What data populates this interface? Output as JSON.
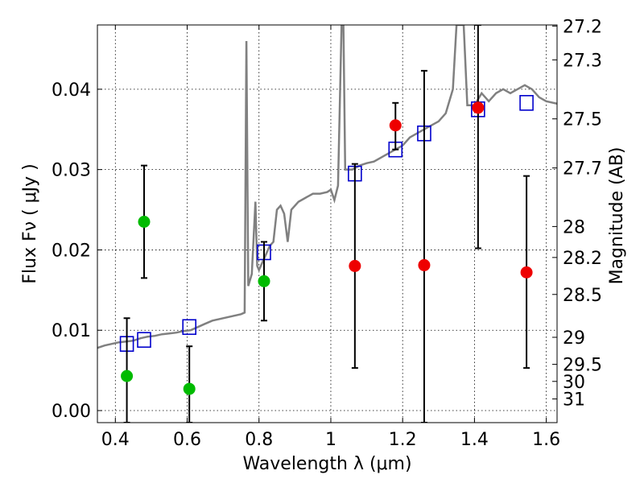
{
  "chart_data": {
    "type": "scatter",
    "xlabel": "Wavelength  λ (μm)",
    "ylabel": "Flux  Fν  ( μJy )",
    "ylabel_right": "Magnitude (AB)",
    "xlim": [
      0.35,
      1.63
    ],
    "ylim": [
      -0.0015,
      0.048
    ],
    "grid": true,
    "x_ticks": [
      {
        "value": 0.4,
        "label": "0.4"
      },
      {
        "value": 0.6,
        "label": "0.6"
      },
      {
        "value": 0.8,
        "label": "0.8"
      },
      {
        "value": 1.0,
        "label": "1"
      },
      {
        "value": 1.2,
        "label": "1.2"
      },
      {
        "value": 1.4,
        "label": "1.4"
      },
      {
        "value": 1.6,
        "label": "1.6"
      }
    ],
    "y_ticks": [
      {
        "value": 0.0,
        "label": "0.00"
      },
      {
        "value": 0.01,
        "label": "0.01"
      },
      {
        "value": 0.02,
        "label": "0.02"
      },
      {
        "value": 0.03,
        "label": "0.03"
      },
      {
        "value": 0.04,
        "label": "0.04"
      }
    ],
    "mag_ticks": [
      {
        "value": 27.2,
        "label": "27.2"
      },
      {
        "value": 27.3,
        "label": "27.3"
      },
      {
        "value": 27.5,
        "label": "27.5"
      },
      {
        "value": 27.7,
        "label": "27.7"
      },
      {
        "value": 28,
        "label": "28"
      },
      {
        "value": 28.2,
        "label": "28.2"
      },
      {
        "value": 28.5,
        "label": "28.5"
      },
      {
        "value": 29,
        "label": "29"
      },
      {
        "value": 29.5,
        "label": "29.5"
      },
      {
        "value": 30,
        "label": "30"
      },
      {
        "value": 31,
        "label": "31"
      }
    ],
    "colors": {
      "spectrum": "#808080",
      "model": "#0000cc",
      "green": "#00bb00",
      "red": "#ee0000",
      "errorbar": "#000000",
      "grid": "#000000"
    },
    "series": [
      {
        "kind": "line",
        "points": [
          [
            0.35,
            0.0078
          ],
          [
            0.37,
            0.0081
          ],
          [
            0.39,
            0.0083
          ],
          [
            0.41,
            0.0085
          ],
          [
            0.43,
            0.0086
          ],
          [
            0.45,
            0.0087
          ],
          [
            0.47,
            0.009
          ],
          [
            0.49,
            0.0092
          ],
          [
            0.51,
            0.0093
          ],
          [
            0.53,
            0.0095
          ],
          [
            0.55,
            0.0096
          ],
          [
            0.57,
            0.0097
          ],
          [
            0.59,
            0.0099
          ],
          [
            0.61,
            0.01
          ],
          [
            0.63,
            0.0104
          ],
          [
            0.65,
            0.0108
          ],
          [
            0.67,
            0.0112
          ],
          [
            0.69,
            0.0114
          ],
          [
            0.71,
            0.0116
          ],
          [
            0.73,
            0.0118
          ],
          [
            0.75,
            0.012
          ],
          [
            0.76,
            0.0122
          ],
          [
            0.765,
            0.046
          ],
          [
            0.77,
            0.0155
          ],
          [
            0.78,
            0.017
          ],
          [
            0.79,
            0.026
          ],
          [
            0.795,
            0.018
          ],
          [
            0.8,
            0.0175
          ],
          [
            0.82,
            0.0195
          ],
          [
            0.83,
            0.0205
          ],
          [
            0.84,
            0.021
          ],
          [
            0.85,
            0.025
          ],
          [
            0.86,
            0.0255
          ],
          [
            0.87,
            0.0245
          ],
          [
            0.88,
            0.021
          ],
          [
            0.89,
            0.025
          ],
          [
            0.91,
            0.026
          ],
          [
            0.93,
            0.0265
          ],
          [
            0.95,
            0.027
          ],
          [
            0.97,
            0.027
          ],
          [
            0.99,
            0.0272
          ],
          [
            1.0,
            0.0275
          ],
          [
            1.01,
            0.0262
          ],
          [
            1.02,
            0.028
          ],
          [
            1.03,
            0.048
          ],
          [
            1.035,
            0.048
          ],
          [
            1.04,
            0.03
          ],
          [
            1.06,
            0.03
          ],
          [
            1.08,
            0.0305
          ],
          [
            1.1,
            0.0308
          ],
          [
            1.12,
            0.031
          ],
          [
            1.14,
            0.0315
          ],
          [
            1.16,
            0.032
          ],
          [
            1.18,
            0.0325
          ],
          [
            1.2,
            0.033
          ],
          [
            1.22,
            0.034
          ],
          [
            1.24,
            0.0345
          ],
          [
            1.26,
            0.035
          ],
          [
            1.28,
            0.0355
          ],
          [
            1.3,
            0.036
          ],
          [
            1.32,
            0.037
          ],
          [
            1.34,
            0.04
          ],
          [
            1.35,
            0.048
          ],
          [
            1.37,
            0.048
          ],
          [
            1.38,
            0.038
          ],
          [
            1.4,
            0.038
          ],
          [
            1.42,
            0.0395
          ],
          [
            1.44,
            0.0385
          ],
          [
            1.46,
            0.0395
          ],
          [
            1.48,
            0.04
          ],
          [
            1.5,
            0.0395
          ],
          [
            1.52,
            0.04
          ],
          [
            1.54,
            0.0405
          ],
          [
            1.56,
            0.04
          ],
          [
            1.58,
            0.039
          ],
          [
            1.6,
            0.0385
          ],
          [
            1.63,
            0.0382
          ]
        ]
      },
      {
        "kind": "squares",
        "points": [
          [
            0.432,
            0.0083
          ],
          [
            0.48,
            0.0088
          ],
          [
            0.606,
            0.0104
          ],
          [
            0.814,
            0.0197
          ],
          [
            1.067,
            0.0295
          ],
          [
            1.18,
            0.0325
          ],
          [
            1.26,
            0.0345
          ],
          [
            1.41,
            0.0375
          ],
          [
            1.545,
            0.0383
          ]
        ]
      },
      {
        "kind": "green-circles",
        "points": [
          {
            "x": 0.432,
            "y": 0.0043,
            "err_low": -0.0015,
            "err_high": 0.0115
          },
          {
            "x": 0.48,
            "y": 0.0235,
            "err_low": 0.0165,
            "err_high": 0.0305
          },
          {
            "x": 0.606,
            "y": 0.0027,
            "err_low": -0.0015,
            "err_high": 0.008
          },
          {
            "x": 0.814,
            "y": 0.0161,
            "err_low": 0.0112,
            "err_high": 0.021
          }
        ]
      },
      {
        "kind": "red-circles",
        "points": [
          {
            "x": 1.067,
            "y": 0.018,
            "err_low": 0.0053,
            "err_high": 0.0307
          },
          {
            "x": 1.18,
            "y": 0.0355,
            "err_low": 0.0325,
            "err_high": 0.0383
          },
          {
            "x": 1.26,
            "y": 0.0181,
            "err_low": -0.0015,
            "err_high": 0.0423
          },
          {
            "x": 1.41,
            "y": 0.0377,
            "err_low": 0.0202,
            "err_high": 0.048
          },
          {
            "x": 1.545,
            "y": 0.0172,
            "err_low": 0.0053,
            "err_high": 0.0292
          }
        ]
      }
    ]
  }
}
